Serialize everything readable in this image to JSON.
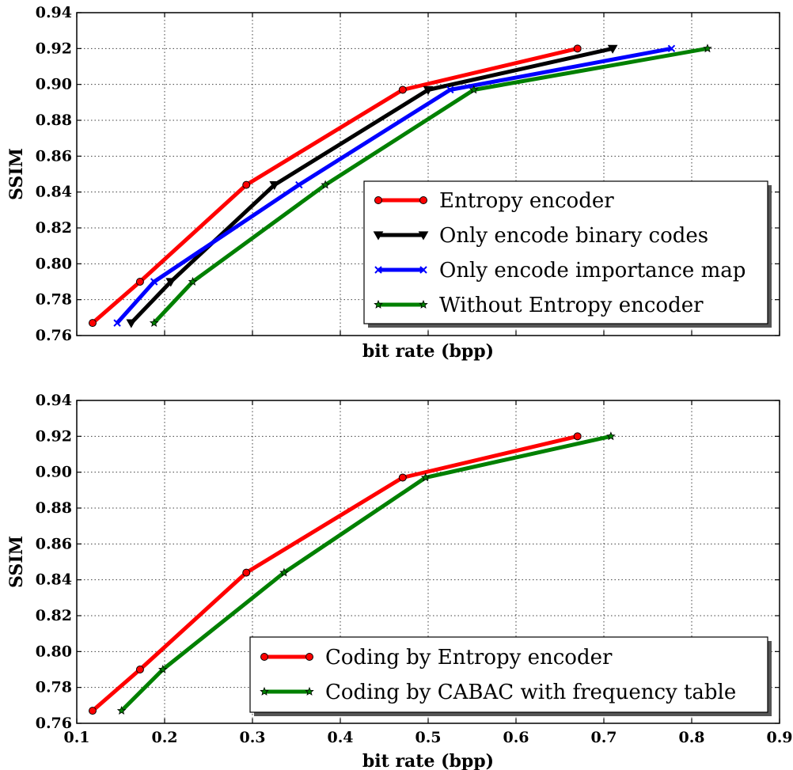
{
  "chart_data": [
    {
      "type": "line",
      "title": "",
      "xlabel": "bit rate (bpp)",
      "ylabel": "SSIM",
      "xlim": [
        0.1,
        0.9
      ],
      "ylim": [
        0.76,
        0.94
      ],
      "x_ticks": [
        0.1,
        0.2,
        0.3,
        0.4,
        0.5,
        0.6,
        0.7,
        0.8,
        0.9
      ],
      "x_tick_labels_visible": false,
      "y_ticks": [
        "0.76",
        "0.78",
        "0.80",
        "0.82",
        "0.84",
        "0.86",
        "0.88",
        "0.90",
        "0.92",
        "0.94"
      ],
      "grid": true,
      "legend_position": "lower-right",
      "series": [
        {
          "name": "Entropy encoder",
          "color": "#ff0000",
          "marker": "circle",
          "x": [
            0.118,
            0.172,
            0.293,
            0.471,
            0.67
          ],
          "y": [
            0.767,
            0.79,
            0.844,
            0.897,
            0.92
          ]
        },
        {
          "name": "Only encode binary codes",
          "color": "#000000",
          "marker": "triangle-down",
          "x": [
            0.162,
            0.207,
            0.325,
            0.5,
            0.71
          ],
          "y": [
            0.767,
            0.79,
            0.844,
            0.897,
            0.92
          ]
        },
        {
          "name": "Only encode importance map",
          "color": "#0000ff",
          "marker": "x",
          "x": [
            0.146,
            0.188,
            0.353,
            0.525,
            0.777
          ],
          "y": [
            0.767,
            0.79,
            0.844,
            0.897,
            0.92
          ]
        },
        {
          "name": "Without Entropy encoder",
          "color": "#008000",
          "marker": "star",
          "x": [
            0.188,
            0.232,
            0.383,
            0.552,
            0.818
          ],
          "y": [
            0.767,
            0.79,
            0.844,
            0.897,
            0.92
          ]
        }
      ]
    },
    {
      "type": "line",
      "title": "",
      "xlabel": "bit rate (bpp)",
      "ylabel": "SSIM",
      "xlim": [
        0.1,
        0.9
      ],
      "ylim": [
        0.76,
        0.94
      ],
      "x_ticks": [
        0.1,
        0.2,
        0.3,
        0.4,
        0.5,
        0.6,
        0.7,
        0.8,
        0.9
      ],
      "x_tick_labels": [
        "0.1",
        "0.2",
        "0.3",
        "0.4",
        "0.5",
        "0.6",
        "0.7",
        "0.8",
        "0.9"
      ],
      "x_tick_labels_visible": true,
      "y_ticks": [
        "0.76",
        "0.78",
        "0.80",
        "0.82",
        "0.84",
        "0.86",
        "0.88",
        "0.90",
        "0.92",
        "0.94"
      ],
      "grid": true,
      "legend_position": "lower-right",
      "series": [
        {
          "name": "Coding by Entropy encoder",
          "color": "#ff0000",
          "marker": "circle",
          "x": [
            0.118,
            0.172,
            0.293,
            0.471,
            0.67
          ],
          "y": [
            0.767,
            0.79,
            0.844,
            0.897,
            0.92
          ]
        },
        {
          "name": "Coding by CABAC with frequency table",
          "color": "#008000",
          "marker": "star",
          "x": [
            0.151,
            0.198,
            0.336,
            0.497,
            0.708
          ],
          "y": [
            0.767,
            0.79,
            0.844,
            0.897,
            0.92
          ]
        }
      ]
    }
  ]
}
